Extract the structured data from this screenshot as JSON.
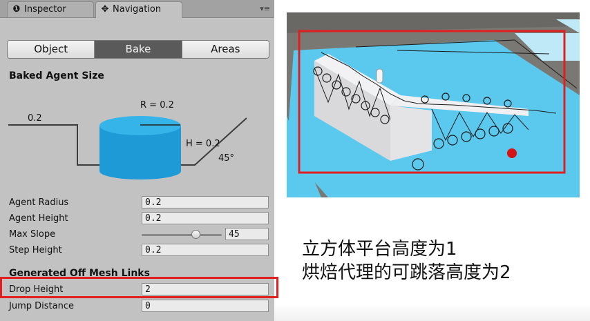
{
  "tabs": {
    "inspector": {
      "label": "Inspector",
      "icon": "info-icon"
    },
    "navigation": {
      "label": "Navigation",
      "icon": "navigation-icon"
    },
    "menu_icon": "menu-icon"
  },
  "segments": [
    "Object",
    "Bake",
    "Areas"
  ],
  "active_segment": "Bake",
  "baked_agent_size": {
    "title": "Baked Agent Size",
    "radius_label": "R = 0.2",
    "height_label": "H = 0.2",
    "step_label": "0.2",
    "slope_label": "45°"
  },
  "fields": {
    "agent_radius": {
      "label": "Agent Radius",
      "value": "0.2"
    },
    "agent_height": {
      "label": "Agent Height",
      "value": "0.2"
    },
    "max_slope": {
      "label": "Max Slope",
      "value": "45",
      "slider_fraction": 0.67
    },
    "step_height": {
      "label": "Step Height",
      "value": "0.2"
    }
  },
  "generated_links": {
    "title": "Generated Off Mesh Links",
    "drop_height": {
      "label": "Drop Height",
      "value": "2"
    },
    "jump_distance": {
      "label": "Jump Distance",
      "value": "0"
    }
  },
  "caption": {
    "line1": "立方体平台高度为1",
    "line2": "烘焙代理的可跳落高度为2"
  },
  "colors": {
    "highlight_red": "#e02020",
    "navmesh_blue": "#5bc8ee",
    "agent_cylinder": "#2aa7e0",
    "panel_gray": "#c2c2c2"
  }
}
